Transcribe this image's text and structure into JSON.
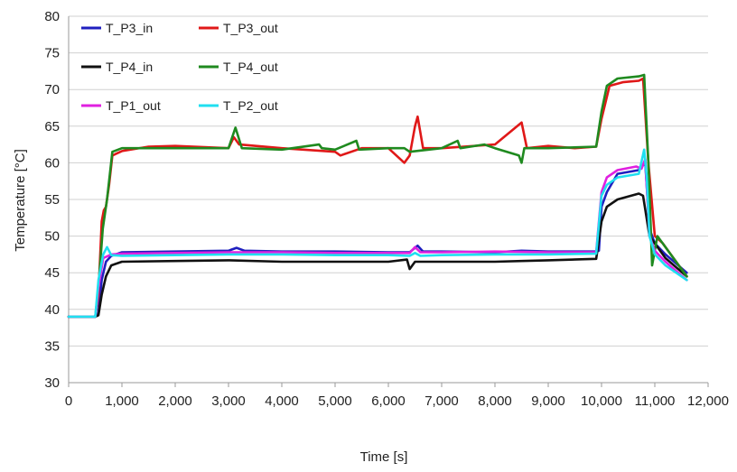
{
  "chart_data": {
    "type": "line",
    "title": "",
    "xlabel": "Time  [s]",
    "ylabel": "Temperature  [°C]",
    "xlim": [
      0,
      12000
    ],
    "ylim": [
      30,
      80
    ],
    "x_ticks": [
      0,
      1000,
      2000,
      3000,
      4000,
      5000,
      6000,
      7000,
      8000,
      9000,
      10000,
      11000,
      12000
    ],
    "x_tick_labels": [
      "0",
      "1,000",
      "2,000",
      "3,000",
      "4,000",
      "5,000",
      "6,000",
      "7,000",
      "8,000",
      "9,000",
      "10,000",
      "11,000",
      "12,000"
    ],
    "y_ticks": [
      30,
      35,
      40,
      45,
      50,
      55,
      60,
      65,
      70,
      75,
      80
    ],
    "y_tick_labels": [
      "30",
      "35",
      "40",
      "45",
      "50",
      "55",
      "60",
      "65",
      "70",
      "75",
      "80"
    ],
    "grid": "horizontal",
    "legend_position": "top-left",
    "series": [
      {
        "name": "T_P3_in",
        "color": "#1f1fbf",
        "points": [
          [
            0,
            39
          ],
          [
            500,
            39
          ],
          [
            560,
            39.5
          ],
          [
            620,
            44
          ],
          [
            700,
            46.5
          ],
          [
            800,
            47.3
          ],
          [
            1000,
            47.8
          ],
          [
            2000,
            47.9
          ],
          [
            3000,
            48
          ],
          [
            3150,
            48.4
          ],
          [
            3300,
            48
          ],
          [
            4000,
            47.9
          ],
          [
            5000,
            47.9
          ],
          [
            6000,
            47.8
          ],
          [
            6400,
            47.8
          ],
          [
            6550,
            48.7
          ],
          [
            6650,
            47.9
          ],
          [
            7000,
            47.9
          ],
          [
            8000,
            47.8
          ],
          [
            8500,
            48
          ],
          [
            9000,
            47.9
          ],
          [
            9900,
            47.9
          ],
          [
            9950,
            48
          ],
          [
            10000,
            54
          ],
          [
            10100,
            56
          ],
          [
            10300,
            58.5
          ],
          [
            10700,
            59
          ],
          [
            10820,
            60
          ],
          [
            10900,
            51
          ],
          [
            11000,
            49
          ],
          [
            11200,
            47.5
          ],
          [
            11600,
            45
          ]
        ]
      },
      {
        "name": "T_P3_out",
        "color": "#e01818",
        "points": [
          [
            0,
            39
          ],
          [
            500,
            39
          ],
          [
            560,
            42
          ],
          [
            620,
            52
          ],
          [
            660,
            53.5
          ],
          [
            700,
            54
          ],
          [
            760,
            57
          ],
          [
            820,
            61
          ],
          [
            1000,
            61.6
          ],
          [
            1500,
            62.2
          ],
          [
            2000,
            62.3
          ],
          [
            3000,
            62
          ],
          [
            3100,
            63.5
          ],
          [
            3200,
            62.5
          ],
          [
            4000,
            62
          ],
          [
            5000,
            61.5
          ],
          [
            5100,
            61
          ],
          [
            5500,
            62
          ],
          [
            6000,
            62
          ],
          [
            6300,
            60
          ],
          [
            6400,
            61
          ],
          [
            6500,
            65
          ],
          [
            6550,
            66.3
          ],
          [
            6650,
            62
          ],
          [
            7000,
            62
          ],
          [
            8000,
            62.5
          ],
          [
            8500,
            65.5
          ],
          [
            8600,
            62
          ],
          [
            9000,
            62.3
          ],
          [
            9500,
            62
          ],
          [
            9900,
            62.2
          ],
          [
            10000,
            66
          ],
          [
            10150,
            70.5
          ],
          [
            10400,
            71
          ],
          [
            10700,
            71.2
          ],
          [
            10780,
            71.5
          ],
          [
            10880,
            60
          ],
          [
            11000,
            50
          ],
          [
            11150,
            49
          ],
          [
            11600,
            44.5
          ]
        ]
      },
      {
        "name": "T_P4_in",
        "color": "#111111",
        "points": [
          [
            0,
            39
          ],
          [
            500,
            39
          ],
          [
            560,
            39.2
          ],
          [
            620,
            42
          ],
          [
            700,
            44.5
          ],
          [
            800,
            46
          ],
          [
            1000,
            46.5
          ],
          [
            2000,
            46.6
          ],
          [
            3000,
            46.7
          ],
          [
            4000,
            46.5
          ],
          [
            5000,
            46.5
          ],
          [
            6000,
            46.5
          ],
          [
            6350,
            46.8
          ],
          [
            6400,
            45.5
          ],
          [
            6500,
            46.5
          ],
          [
            7000,
            46.5
          ],
          [
            8000,
            46.5
          ],
          [
            8500,
            46.6
          ],
          [
            9000,
            46.7
          ],
          [
            9900,
            46.9
          ],
          [
            10000,
            52
          ],
          [
            10100,
            54
          ],
          [
            10300,
            55
          ],
          [
            10700,
            55.8
          ],
          [
            10780,
            55.5
          ],
          [
            10900,
            50
          ],
          [
            11000,
            49
          ],
          [
            11200,
            47
          ],
          [
            11600,
            44.5
          ]
        ]
      },
      {
        "name": "T_P4_out",
        "color": "#1f8a1f",
        "points": [
          [
            0,
            39
          ],
          [
            500,
            39
          ],
          [
            560,
            43
          ],
          [
            640,
            51
          ],
          [
            720,
            55
          ],
          [
            820,
            61.5
          ],
          [
            1000,
            62
          ],
          [
            2000,
            62
          ],
          [
            3000,
            62
          ],
          [
            3130,
            64.8
          ],
          [
            3250,
            62
          ],
          [
            4000,
            61.8
          ],
          [
            4700,
            62.5
          ],
          [
            4750,
            62
          ],
          [
            5000,
            61.8
          ],
          [
            5400,
            63
          ],
          [
            5450,
            61.8
          ],
          [
            6000,
            62
          ],
          [
            6300,
            62
          ],
          [
            6400,
            61.5
          ],
          [
            7000,
            62
          ],
          [
            7300,
            63
          ],
          [
            7350,
            62
          ],
          [
            7800,
            62.5
          ],
          [
            8000,
            62
          ],
          [
            8450,
            61
          ],
          [
            8500,
            60
          ],
          [
            8550,
            62
          ],
          [
            9000,
            62
          ],
          [
            9900,
            62.2
          ],
          [
            10000,
            67
          ],
          [
            10100,
            70.5
          ],
          [
            10300,
            71.5
          ],
          [
            10700,
            71.8
          ],
          [
            10800,
            72
          ],
          [
            10880,
            60
          ],
          [
            10950,
            46
          ],
          [
            11050,
            50
          ],
          [
            11600,
            44.5
          ]
        ]
      },
      {
        "name": "T_P1_out",
        "color": "#e020e0",
        "points": [
          [
            0,
            39
          ],
          [
            500,
            39
          ],
          [
            560,
            43
          ],
          [
            650,
            47
          ],
          [
            800,
            47.5
          ],
          [
            1000,
            47.6
          ],
          [
            2000,
            47.7
          ],
          [
            3000,
            47.8
          ],
          [
            4000,
            47.8
          ],
          [
            5000,
            47.7
          ],
          [
            6000,
            47.7
          ],
          [
            6400,
            47.7
          ],
          [
            6500,
            48.5
          ],
          [
            6600,
            47.8
          ],
          [
            7000,
            47.8
          ],
          [
            8000,
            47.9
          ],
          [
            9000,
            47.8
          ],
          [
            9900,
            47.8
          ],
          [
            10000,
            56
          ],
          [
            10100,
            58
          ],
          [
            10300,
            59
          ],
          [
            10650,
            59.5
          ],
          [
            10750,
            59.2
          ],
          [
            10820,
            60.5
          ],
          [
            10900,
            50
          ],
          [
            11000,
            48
          ],
          [
            11200,
            46.5
          ],
          [
            11600,
            44
          ]
        ]
      },
      {
        "name": "T_P2_out",
        "color": "#20dff0",
        "points": [
          [
            0,
            39
          ],
          [
            500,
            39
          ],
          [
            560,
            44
          ],
          [
            650,
            47.5
          ],
          [
            720,
            48.5
          ],
          [
            800,
            47.4
          ],
          [
            1000,
            47.3
          ],
          [
            2000,
            47.4
          ],
          [
            3000,
            47.5
          ],
          [
            4000,
            47.5
          ],
          [
            5000,
            47.4
          ],
          [
            6000,
            47.4
          ],
          [
            6400,
            47.3
          ],
          [
            6500,
            47.7
          ],
          [
            6600,
            47.3
          ],
          [
            7000,
            47.4
          ],
          [
            8000,
            47.5
          ],
          [
            9000,
            47.5
          ],
          [
            9900,
            47.6
          ],
          [
            10000,
            55.5
          ],
          [
            10100,
            57
          ],
          [
            10300,
            58
          ],
          [
            10700,
            58.5
          ],
          [
            10800,
            61.8
          ],
          [
            10850,
            58
          ],
          [
            10900,
            50
          ],
          [
            11000,
            47.5
          ],
          [
            11200,
            46
          ],
          [
            11600,
            44
          ]
        ]
      }
    ]
  }
}
